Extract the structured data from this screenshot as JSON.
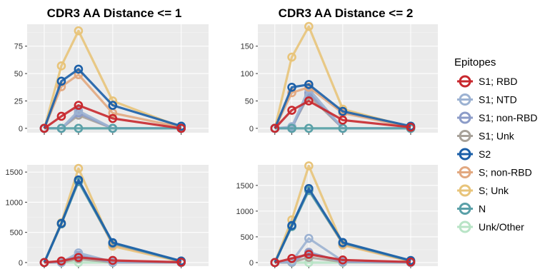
{
  "colors": {
    "panel_bg": "#ebebeb",
    "grid_major": "#ffffff",
    "grid_minor": "#f4f4f4"
  },
  "column_titles": [
    "CDR3 AA Distance <= 1",
    "CDR3 AA Distance <= 2"
  ],
  "legend": {
    "title": "Epitopes",
    "placement": "right",
    "items": [
      {
        "label": "S1; RBD",
        "color": "#c8282e"
      },
      {
        "label": "S1; NTD",
        "color": "#9cb2d2"
      },
      {
        "label": "S1; non-RBD",
        "color": "#8c9cc8"
      },
      {
        "label": "S1; Unk",
        "color": "#a8a29a"
      },
      {
        "label": "S2",
        "color": "#1b5fa8"
      },
      {
        "label": "S; non-RBD",
        "color": "#e2a880"
      },
      {
        "label": "S; Unk",
        "color": "#e8c47a"
      },
      {
        "label": "N",
        "color": "#5aa0a8"
      },
      {
        "label": "Unk/Other",
        "color": "#b8e4c6"
      }
    ]
  },
  "chart_data": [
    {
      "type": "line",
      "title": "CDR3 AA Distance <= 1",
      "x": [
        0,
        1,
        2,
        4,
        8
      ],
      "ylim": [
        -4,
        95
      ],
      "yticks": [
        0,
        25,
        50,
        75
      ],
      "grid": true,
      "series": [
        {
          "name": "S1; RBD",
          "values": [
            0,
            11,
            21,
            9,
            0
          ]
        },
        {
          "name": "S1; NTD",
          "values": [
            0,
            0,
            16,
            0,
            0
          ]
        },
        {
          "name": "S1; non-RBD",
          "values": [
            0,
            0,
            14,
            0,
            0
          ]
        },
        {
          "name": "S1; Unk",
          "values": [
            0,
            0,
            12,
            0,
            0
          ]
        },
        {
          "name": "S2",
          "values": [
            0,
            43,
            54,
            21,
            2
          ]
        },
        {
          "name": "S; non-RBD",
          "values": [
            0,
            38,
            49,
            14,
            1
          ]
        },
        {
          "name": "S; Unk",
          "values": [
            0,
            57,
            89,
            25,
            1
          ]
        },
        {
          "name": "N",
          "values": [
            0,
            0,
            0,
            0,
            0
          ]
        },
        {
          "name": "Unk/Other",
          "values": [
            0,
            0,
            0,
            0,
            0
          ]
        }
      ]
    },
    {
      "type": "line",
      "title": "CDR3 AA Distance <= 2",
      "x": [
        0,
        1,
        2,
        4,
        8
      ],
      "ylim": [
        -8,
        190
      ],
      "yticks": [
        0,
        50,
        100,
        150
      ],
      "grid": true,
      "series": [
        {
          "name": "S1; RBD",
          "values": [
            0,
            33,
            50,
            15,
            2
          ]
        },
        {
          "name": "S1; NTD",
          "values": [
            0,
            3,
            72,
            0,
            0
          ]
        },
        {
          "name": "S1; non-RBD",
          "values": [
            0,
            0,
            65,
            0,
            0
          ]
        },
        {
          "name": "S1; Unk",
          "values": [
            0,
            2,
            60,
            0,
            0
          ]
        },
        {
          "name": "S2",
          "values": [
            0,
            75,
            80,
            31,
            4
          ]
        },
        {
          "name": "S; non-RBD",
          "values": [
            0,
            65,
            75,
            28,
            2
          ]
        },
        {
          "name": "S; Unk",
          "values": [
            0,
            130,
            186,
            35,
            2
          ]
        },
        {
          "name": "N",
          "values": [
            0,
            0,
            0,
            0,
            0
          ]
        },
        {
          "name": "Unk/Other",
          "values": [
            0,
            0,
            0,
            0,
            0
          ]
        }
      ]
    },
    {
      "type": "line",
      "title": "",
      "x": [
        0,
        1,
        2,
        4,
        8
      ],
      "ylim": [
        -60,
        1620
      ],
      "yticks": [
        0,
        500,
        1000,
        1500
      ],
      "grid": true,
      "series": [
        {
          "name": "S1; RBD",
          "values": [
            0,
            25,
            85,
            35,
            5
          ]
        },
        {
          "name": "S1; NTD",
          "values": [
            0,
            5,
            160,
            10,
            0
          ]
        },
        {
          "name": "S1; non-RBD",
          "values": [
            0,
            3,
            120,
            5,
            0
          ]
        },
        {
          "name": "S1; Unk",
          "values": [
            0,
            2,
            60,
            3,
            0
          ]
        },
        {
          "name": "S2",
          "values": [
            0,
            650,
            1370,
            330,
            25
          ]
        },
        {
          "name": "S; non-RBD",
          "values": [
            0,
            640,
            1360,
            300,
            20
          ]
        },
        {
          "name": "S; Unk",
          "values": [
            0,
            660,
            1560,
            270,
            15
          ]
        },
        {
          "name": "N",
          "values": [
            0,
            640,
            1340,
            320,
            20
          ]
        },
        {
          "name": "Unk/Other",
          "values": [
            0,
            0,
            0,
            0,
            0
          ]
        }
      ]
    },
    {
      "type": "line",
      "title": "",
      "x": [
        0,
        1,
        2,
        4,
        8
      ],
      "ylim": [
        -70,
        1900
      ],
      "yticks": [
        0,
        500,
        1000,
        1500
      ],
      "grid": true,
      "series": [
        {
          "name": "S1; RBD",
          "values": [
            0,
            80,
            160,
            50,
            10
          ]
        },
        {
          "name": "S1; NTD",
          "values": [
            0,
            20,
            470,
            30,
            0
          ]
        },
        {
          "name": "S1; non-RBD",
          "values": [
            0,
            10,
            200,
            15,
            0
          ]
        },
        {
          "name": "S1; Unk",
          "values": [
            0,
            5,
            100,
            10,
            0
          ]
        },
        {
          "name": "S2",
          "values": [
            0,
            720,
            1440,
            390,
            40
          ]
        },
        {
          "name": "S; non-RBD",
          "values": [
            0,
            710,
            1420,
            360,
            30
          ]
        },
        {
          "name": "S; Unk",
          "values": [
            0,
            830,
            1880,
            340,
            20
          ]
        },
        {
          "name": "N",
          "values": [
            0,
            700,
            1400,
            380,
            35
          ]
        },
        {
          "name": "Unk/Other",
          "values": [
            0,
            0,
            0,
            0,
            0
          ]
        }
      ]
    }
  ]
}
